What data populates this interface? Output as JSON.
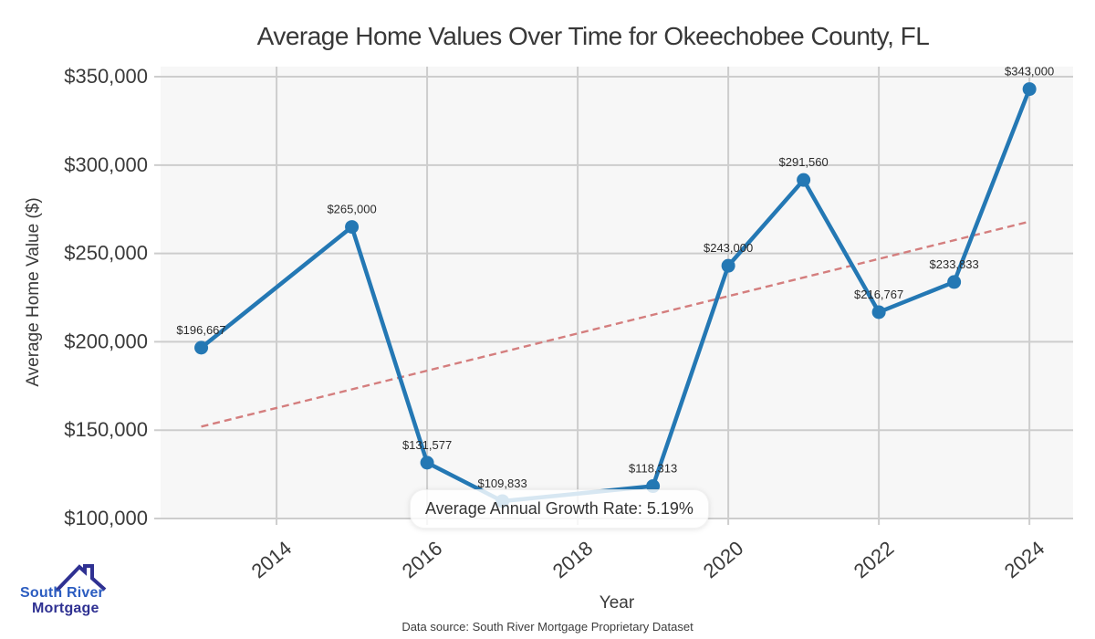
{
  "page": {
    "background": "#ffffff"
  },
  "logo": {
    "icon": "house-roof-icon",
    "line1": "South River",
    "line2": "Mortgage",
    "color_primary": "#2b5cc0",
    "color_secondary": "#2f3192"
  },
  "footer": {
    "source_text": "Data source: South River Mortgage Proprietary Dataset"
  },
  "chart_data": {
    "type": "line",
    "title": "Average Home Values Over Time for Okeechobee County, FL",
    "xlabel": "Year",
    "ylabel": "Average Home Value ($)",
    "x": [
      2013,
      2015,
      2016,
      2017,
      2019,
      2020,
      2021,
      2022,
      2023,
      2024
    ],
    "values": [
      196667,
      265000,
      131577,
      109833,
      118313,
      243000,
      291560,
      216767,
      233833,
      343000
    ],
    "point_labels": [
      "$196,667",
      "$265,000",
      "$131,577",
      "$109,833",
      "$118,313",
      "$243,000",
      "$291,560",
      "$216,767",
      "$233,833",
      "$343,000"
    ],
    "xticks": [
      2014,
      2016,
      2018,
      2020,
      2022,
      2024
    ],
    "xtick_labels": [
      "2014",
      "2016",
      "2018",
      "2020",
      "2022",
      "2024"
    ],
    "yticks": [
      100000,
      150000,
      200000,
      250000,
      300000,
      350000
    ],
    "ytick_labels": [
      "$100,000",
      "$150,000",
      "$200,000",
      "$250,000",
      "$300,000",
      "$350,000"
    ],
    "xlim": [
      2012.46,
      2024.58
    ],
    "ylim": [
      100000,
      355700
    ],
    "grid": true,
    "annotation": "Average Annual Growth Rate: 5.19%",
    "trend": {
      "style": "dashed",
      "x": [
        2013,
        2024
      ],
      "values": [
        152000,
        268000
      ],
      "color": "#d47e7e"
    },
    "colors": {
      "line": "#2478b4",
      "marker": "#2478b4",
      "grid": "#cdcdcd",
      "plot_background": "#f7f7f7",
      "label_text": "#2b2b2b",
      "axis_text": "#3a3a3a"
    }
  }
}
